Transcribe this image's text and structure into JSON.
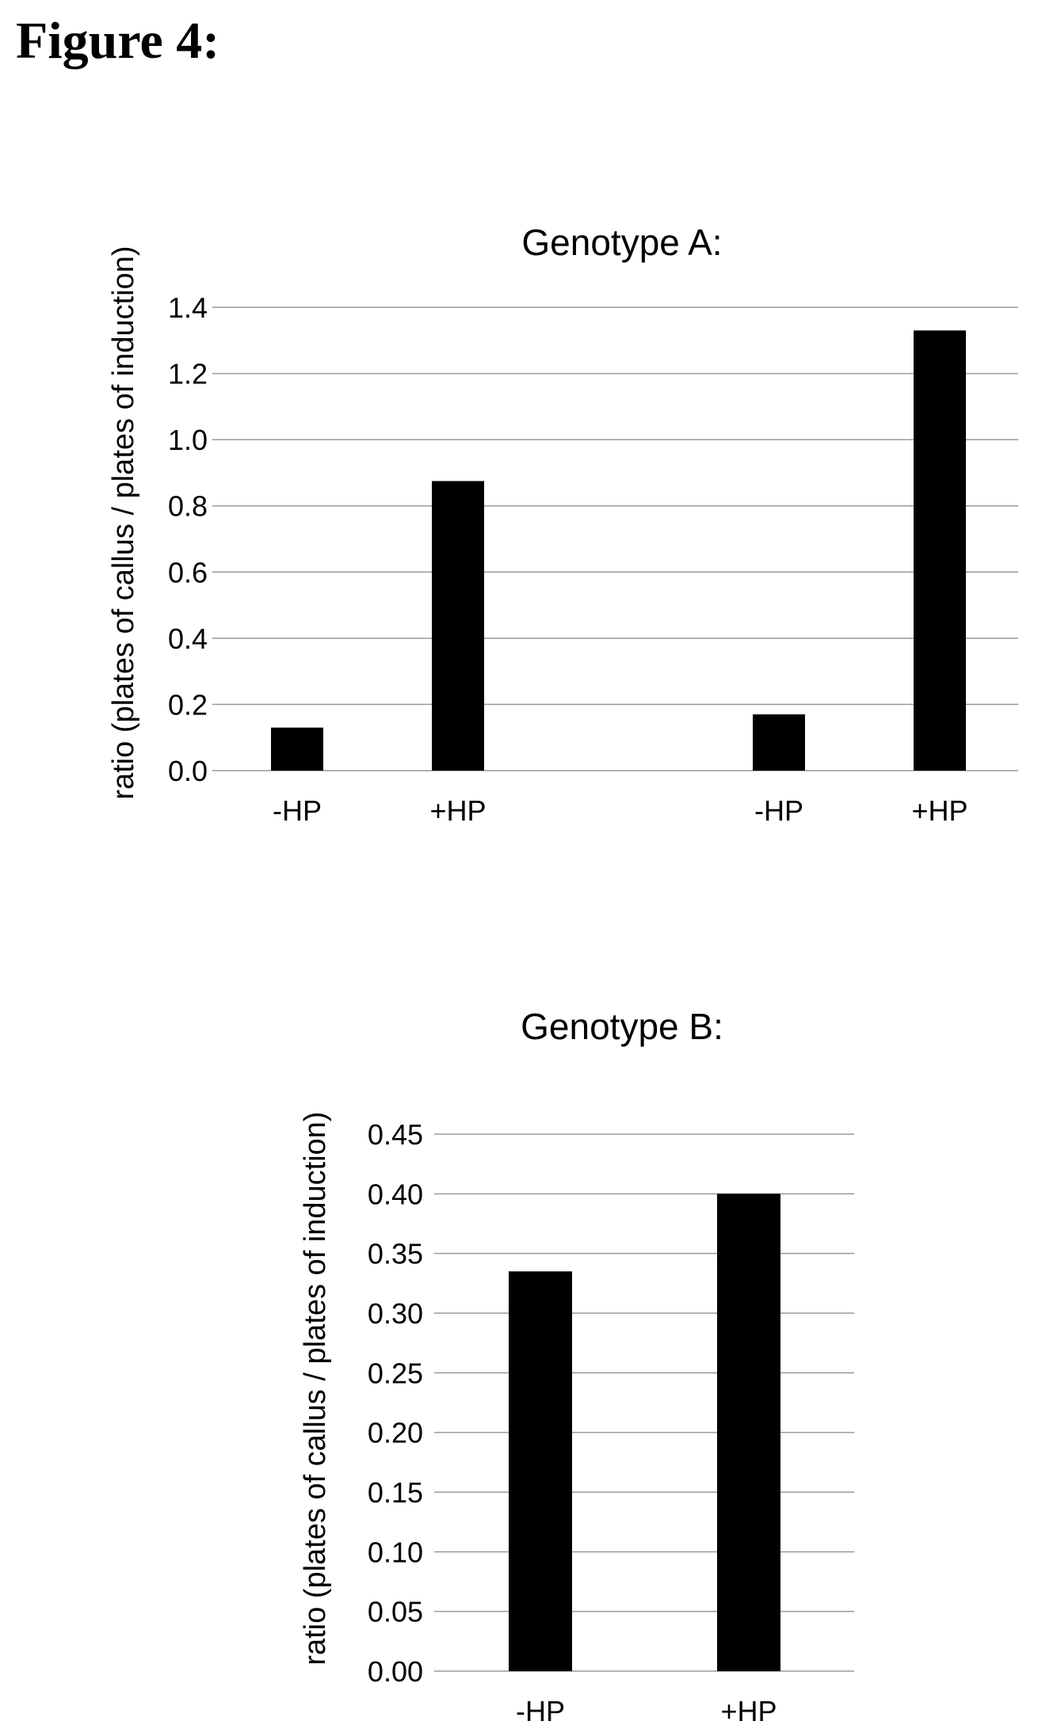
{
  "figure_title": "Figure 4:",
  "chart_data": [
    {
      "type": "bar",
      "title": "Genotype A:",
      "ylabel": "ratio (plates of callus / plates of induction)",
      "xlabel": "",
      "categories": [
        "-HP",
        "+HP",
        "-HP",
        "+HP"
      ],
      "values": [
        0.13,
        0.875,
        0.17,
        1.33
      ],
      "ylim": [
        0,
        1.4
      ],
      "yticks": [
        "0.0",
        "0.2",
        "0.4",
        "0.6",
        "0.8",
        "1.0",
        "1.2",
        "1.4"
      ],
      "grid": true,
      "legend": "none",
      "bar_color": "#000000",
      "grid_color": "#999999"
    },
    {
      "type": "bar",
      "title": "Genotype B:",
      "ylabel": "ratio (plates of callus / plates of induction)",
      "xlabel": "",
      "categories": [
        "-HP",
        "+HP"
      ],
      "values": [
        0.335,
        0.4
      ],
      "ylim": [
        0,
        0.45
      ],
      "yticks": [
        "0.00",
        "0.05",
        "0.10",
        "0.15",
        "0.20",
        "0.25",
        "0.30",
        "0.35",
        "0.40",
        "0.45"
      ],
      "grid": true,
      "legend": "none",
      "bar_color": "#000000",
      "grid_color": "#999999"
    }
  ]
}
